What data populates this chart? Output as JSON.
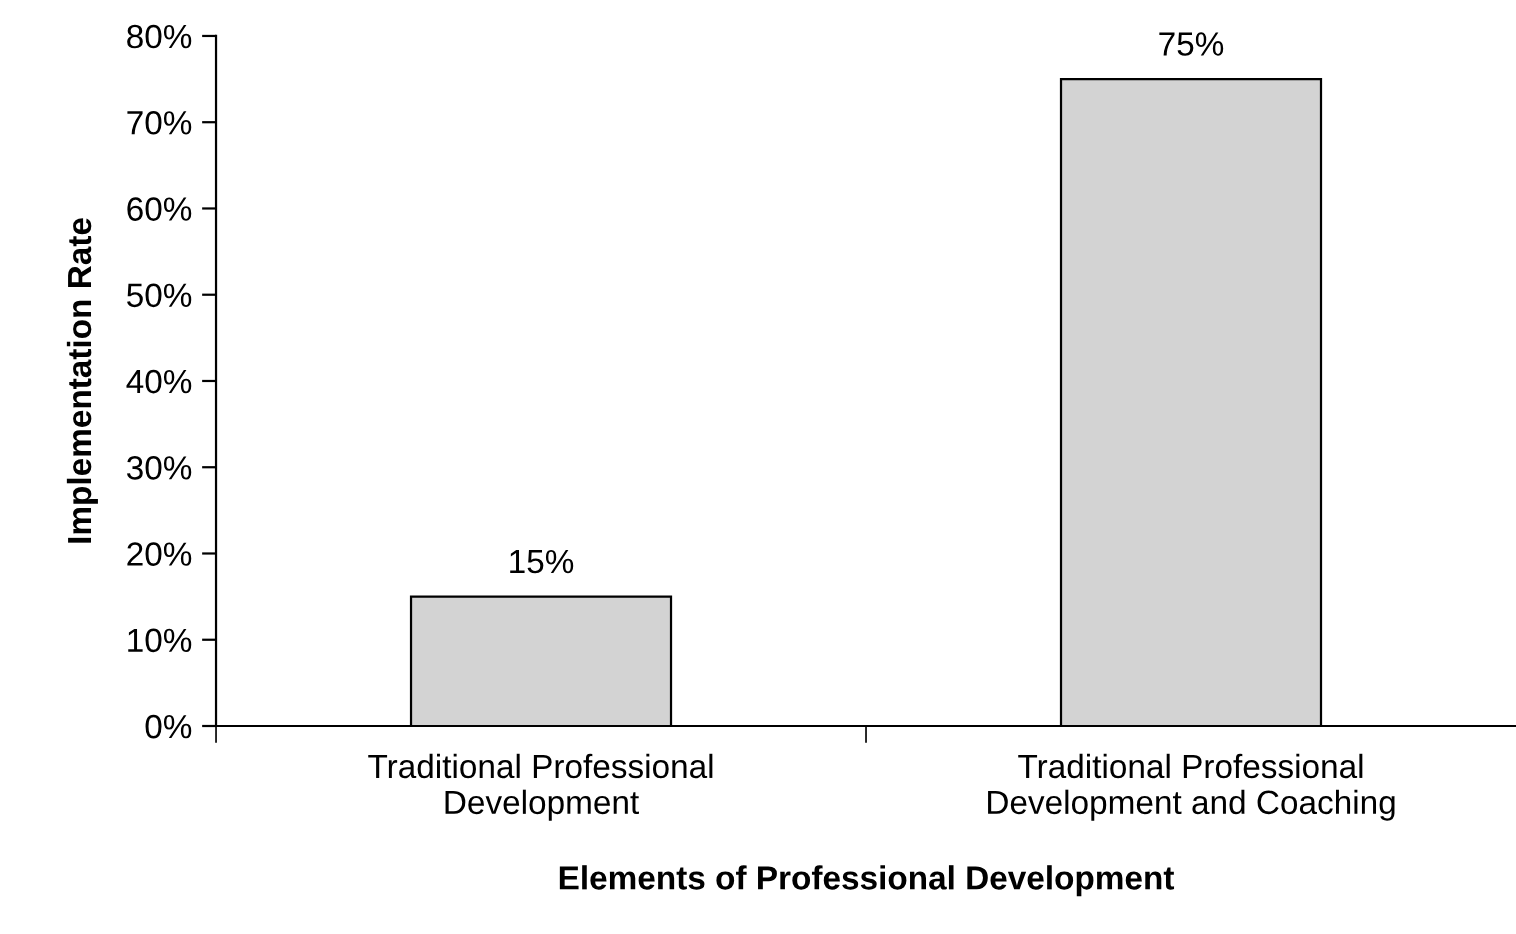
{
  "chart_data": {
    "type": "bar",
    "categories": [
      "Traditional Professional\nDevelopment",
      "Traditional Professional\nDevelopment and Coaching"
    ],
    "values": [
      15,
      75
    ],
    "color": "#d3d3d3",
    "value_labels": [
      "15%",
      "75%"
    ],
    "xlabel": "Elements of Professional Development",
    "ylabel": "Implementation Rate",
    "ylim": [
      0,
      80
    ],
    "yticks": [
      {
        "value": 0,
        "label": "0%"
      },
      {
        "value": 10,
        "label": "10%"
      },
      {
        "value": 20,
        "label": "20%"
      },
      {
        "value": 30,
        "label": "30%"
      },
      {
        "value": 40,
        "label": "40%"
      },
      {
        "value": 50,
        "label": "50%"
      },
      {
        "value": 60,
        "label": "60%"
      },
      {
        "value": 70,
        "label": "70%"
      },
      {
        "value": 80,
        "label": "80%"
      }
    ],
    "grid": false,
    "legend": false
  }
}
